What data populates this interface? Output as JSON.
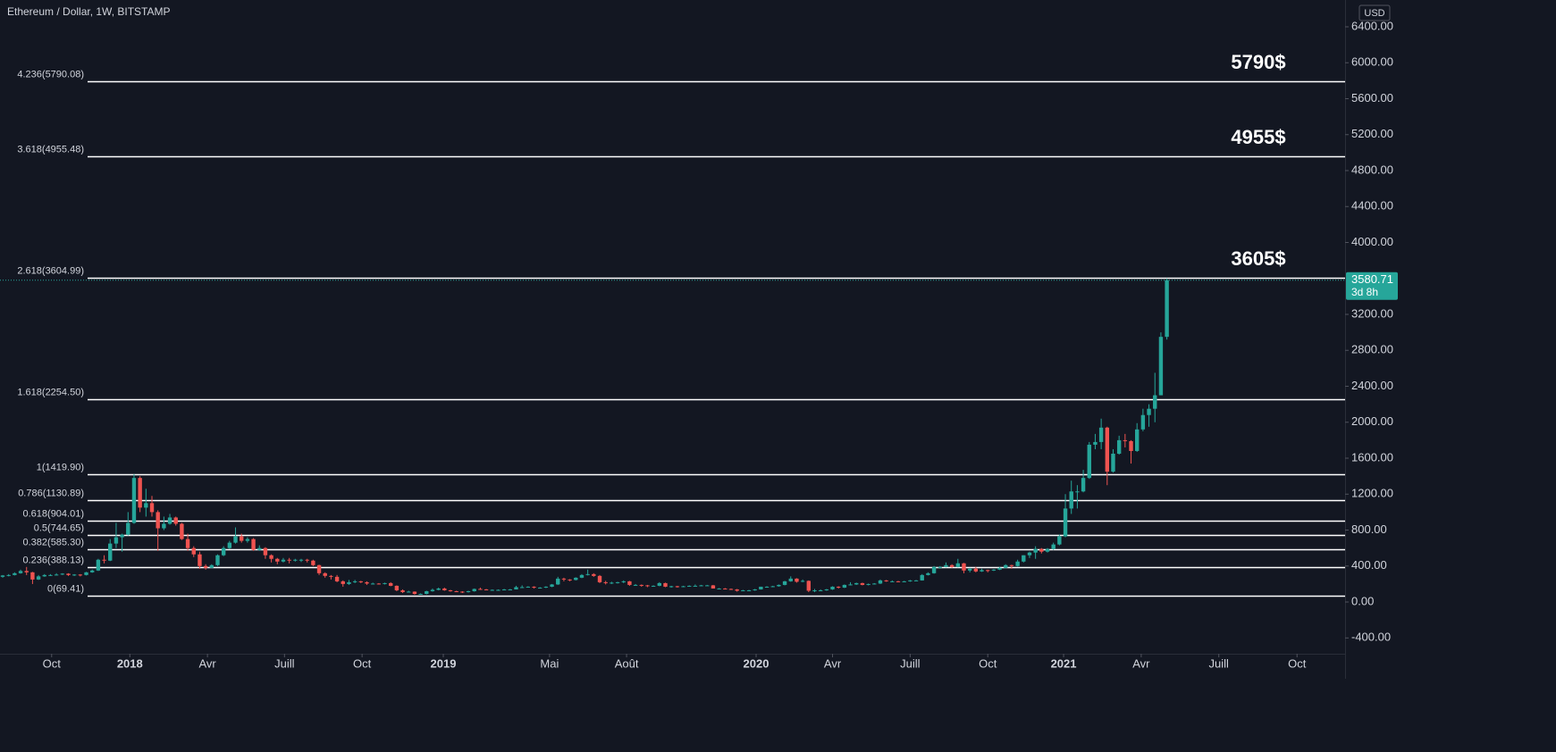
{
  "chart_data": {
    "type": "candlestick",
    "title": "Ethereum / Dollar, 1W, BITSTAMP",
    "currency": "USD",
    "colors": {
      "up": "#26a69a",
      "down": "#ef5350",
      "level": "#ffffff"
    },
    "ylim": [
      -576,
      6698
    ],
    "yticks": [
      {
        "value": -400,
        "label": "-400.00"
      },
      {
        "value": 0,
        "label": "0.00"
      },
      {
        "value": 400,
        "label": "400.00"
      },
      {
        "value": 800,
        "label": "800.00"
      },
      {
        "value": 1200,
        "label": "1200.00"
      },
      {
        "value": 1600,
        "label": "1600.00"
      },
      {
        "value": 2000,
        "label": "2000.00"
      },
      {
        "value": 2400,
        "label": "2400.00"
      },
      {
        "value": 2800,
        "label": "2800.00"
      },
      {
        "value": 3200,
        "label": "3200.00"
      },
      {
        "value": 4000,
        "label": "4000.00"
      },
      {
        "value": 4400,
        "label": "4400.00"
      },
      {
        "value": 4800,
        "label": "4800.00"
      },
      {
        "value": 5200,
        "label": "5200.00"
      },
      {
        "value": 5600,
        "label": "5600.00"
      },
      {
        "value": 6000,
        "label": "6000.00"
      },
      {
        "value": 6400,
        "label": "6400.00"
      }
    ],
    "xlim": [
      -0.45,
      224.85
    ],
    "xticks": [
      {
        "value": 8.2,
        "label": "Oct"
      },
      {
        "value": 21.3,
        "label": "2018"
      },
      {
        "value": 34.3,
        "label": "Avr"
      },
      {
        "value": 47.2,
        "label": "Juill"
      },
      {
        "value": 60.2,
        "label": "Oct"
      },
      {
        "value": 73.8,
        "label": "2019"
      },
      {
        "value": 91.6,
        "label": "Mai"
      },
      {
        "value": 104.5,
        "label": "Août"
      },
      {
        "value": 126.2,
        "label": "2020"
      },
      {
        "value": 139,
        "label": "Avr"
      },
      {
        "value": 152,
        "label": "Juill"
      },
      {
        "value": 165,
        "label": "Oct"
      },
      {
        "value": 177.7,
        "label": "2021"
      },
      {
        "value": 190.7,
        "label": "Avr"
      },
      {
        "value": 203.7,
        "label": "Juill"
      },
      {
        "value": 216.8,
        "label": "Oct"
      }
    ],
    "levels": [
      {
        "value": 69.41,
        "label": "0(69.41)"
      },
      {
        "value": 388.13,
        "label": "0.236(388.13)"
      },
      {
        "value": 585.3,
        "label": "0.382(585.30)"
      },
      {
        "value": 744.65,
        "label": "0.5(744.65)"
      },
      {
        "value": 904.01,
        "label": "0.618(904.01)"
      },
      {
        "value": 1130.89,
        "label": "0.786(1130.89)"
      },
      {
        "value": 1419.9,
        "label": "1(1419.90)"
      },
      {
        "value": 2254.5,
        "label": "1.618(2254.50)"
      },
      {
        "value": 3604.99,
        "label": "2.618(3604.99)"
      },
      {
        "value": 4955.48,
        "label": "3.618(4955.48)"
      },
      {
        "value": 5790.08,
        "label": "4.236(5790.08)"
      }
    ],
    "annotations": [
      {
        "value": 5790,
        "label": "5790$"
      },
      {
        "value": 4955,
        "label": "4955$"
      },
      {
        "value": 3605,
        "label": "3605$"
      }
    ],
    "countdown": "3d 8h",
    "ohlc": [
      [
        280,
        300,
        270,
        295
      ],
      [
        295,
        310,
        285,
        300
      ],
      [
        300,
        330,
        295,
        320
      ],
      [
        320,
        360,
        315,
        345
      ],
      [
        345,
        390,
        300,
        330
      ],
      [
        330,
        335,
        200,
        250
      ],
      [
        250,
        300,
        245,
        285
      ],
      [
        285,
        310,
        280,
        300
      ],
      [
        300,
        310,
        290,
        300
      ],
      [
        300,
        320,
        295,
        305
      ],
      [
        305,
        320,
        300,
        315
      ],
      [
        315,
        320,
        290,
        300
      ],
      [
        300,
        310,
        290,
        305
      ],
      [
        305,
        310,
        285,
        300
      ],
      [
        300,
        335,
        295,
        330
      ],
      [
        330,
        360,
        325,
        350
      ],
      [
        350,
        480,
        345,
        470
      ],
      [
        470,
        520,
        430,
        460
      ],
      [
        460,
        700,
        455,
        650
      ],
      [
        650,
        880,
        600,
        720
      ],
      [
        720,
        760,
        560,
        750
      ],
      [
        750,
        1000,
        740,
        880
      ],
      [
        880,
        1420,
        870,
        1380
      ],
      [
        1380,
        1400,
        1000,
        1050
      ],
      [
        1050,
        1260,
        950,
        1100
      ],
      [
        1100,
        1180,
        950,
        1000
      ],
      [
        1000,
        1020,
        570,
        820
      ],
      [
        820,
        950,
        800,
        870
      ],
      [
        870,
        980,
        860,
        940
      ],
      [
        940,
        950,
        850,
        870
      ],
      [
        870,
        880,
        690,
        700
      ],
      [
        700,
        760,
        570,
        600
      ],
      [
        600,
        620,
        500,
        530
      ],
      [
        530,
        560,
        370,
        400
      ],
      [
        400,
        420,
        360,
        380
      ],
      [
        380,
        420,
        375,
        410
      ],
      [
        410,
        530,
        400,
        520
      ],
      [
        520,
        620,
        510,
        600
      ],
      [
        600,
        680,
        590,
        660
      ],
      [
        660,
        830,
        650,
        730
      ],
      [
        730,
        760,
        660,
        680
      ],
      [
        680,
        720,
        660,
        700
      ],
      [
        700,
        710,
        570,
        580
      ],
      [
        580,
        630,
        570,
        600
      ],
      [
        600,
        610,
        480,
        520
      ],
      [
        520,
        530,
        440,
        480
      ],
      [
        480,
        490,
        420,
        450
      ],
      [
        450,
        490,
        440,
        470
      ],
      [
        470,
        490,
        430,
        460
      ],
      [
        460,
        480,
        450,
        470
      ],
      [
        470,
        480,
        445,
        470
      ],
      [
        470,
        480,
        440,
        460
      ],
      [
        460,
        470,
        400,
        410
      ],
      [
        410,
        415,
        300,
        320
      ],
      [
        320,
        330,
        270,
        290
      ],
      [
        290,
        300,
        250,
        280
      ],
      [
        280,
        300,
        220,
        230
      ],
      [
        230,
        240,
        170,
        200
      ],
      [
        200,
        245,
        190,
        220
      ],
      [
        220,
        245,
        210,
        230
      ],
      [
        230,
        235,
        210,
        220
      ],
      [
        220,
        230,
        190,
        205
      ],
      [
        205,
        215,
        195,
        205
      ],
      [
        205,
        210,
        195,
        200
      ],
      [
        200,
        215,
        195,
        210
      ],
      [
        210,
        220,
        175,
        180
      ],
      [
        180,
        185,
        120,
        130
      ],
      [
        130,
        140,
        100,
        110
      ],
      [
        110,
        125,
        105,
        115
      ],
      [
        115,
        118,
        82,
        90
      ],
      [
        90,
        95,
        84,
        90
      ],
      [
        90,
        125,
        85,
        120
      ],
      [
        120,
        150,
        115,
        135
      ],
      [
        135,
        160,
        130,
        150
      ],
      [
        150,
        160,
        125,
        130
      ],
      [
        130,
        135,
        115,
        120
      ],
      [
        120,
        125,
        110,
        115
      ],
      [
        115,
        120,
        100,
        110
      ],
      [
        110,
        125,
        105,
        120
      ],
      [
        120,
        150,
        115,
        145
      ],
      [
        145,
        160,
        135,
        140
      ],
      [
        140,
        145,
        130,
        135
      ],
      [
        135,
        140,
        125,
        135
      ],
      [
        135,
        140,
        130,
        135
      ],
      [
        135,
        145,
        130,
        140
      ],
      [
        140,
        145,
        135,
        140
      ],
      [
        140,
        180,
        140,
        165
      ],
      [
        165,
        185,
        160,
        165
      ],
      [
        165,
        175,
        160,
        170
      ],
      [
        170,
        175,
        150,
        160
      ],
      [
        160,
        165,
        150,
        160
      ],
      [
        160,
        175,
        155,
        170
      ],
      [
        170,
        200,
        165,
        195
      ],
      [
        195,
        280,
        190,
        260
      ],
      [
        260,
        270,
        230,
        250
      ],
      [
        250,
        255,
        230,
        245
      ],
      [
        245,
        275,
        240,
        270
      ],
      [
        270,
        310,
        265,
        300
      ],
      [
        300,
        360,
        295,
        310
      ],
      [
        310,
        320,
        280,
        290
      ],
      [
        290,
        300,
        210,
        220
      ],
      [
        220,
        235,
        195,
        210
      ],
      [
        210,
        225,
        200,
        215
      ],
      [
        215,
        225,
        205,
        220
      ],
      [
        220,
        240,
        210,
        230
      ],
      [
        230,
        235,
        180,
        190
      ],
      [
        190,
        200,
        185,
        190
      ],
      [
        190,
        195,
        170,
        185
      ],
      [
        185,
        190,
        165,
        175
      ],
      [
        175,
        185,
        170,
        180
      ],
      [
        180,
        220,
        175,
        210
      ],
      [
        210,
        215,
        165,
        170
      ],
      [
        170,
        180,
        160,
        175
      ],
      [
        175,
        180,
        160,
        170
      ],
      [
        170,
        180,
        165,
        175
      ],
      [
        175,
        185,
        170,
        180
      ],
      [
        180,
        195,
        175,
        180
      ],
      [
        180,
        190,
        175,
        185
      ],
      [
        185,
        190,
        180,
        185
      ],
      [
        185,
        190,
        150,
        150
      ],
      [
        150,
        155,
        140,
        150
      ],
      [
        150,
        155,
        140,
        145
      ],
      [
        145,
        150,
        135,
        140
      ],
      [
        140,
        145,
        115,
        125
      ],
      [
        125,
        135,
        120,
        130
      ],
      [
        130,
        135,
        125,
        130
      ],
      [
        130,
        145,
        125,
        140
      ],
      [
        140,
        170,
        138,
        170
      ],
      [
        170,
        175,
        160,
        170
      ],
      [
        170,
        180,
        165,
        175
      ],
      [
        175,
        195,
        170,
        190
      ],
      [
        190,
        235,
        185,
        230
      ],
      [
        230,
        285,
        225,
        260
      ],
      [
        260,
        265,
        215,
        225
      ],
      [
        225,
        250,
        220,
        235
      ],
      [
        235,
        240,
        110,
        125
      ],
      [
        125,
        145,
        110,
        130
      ],
      [
        130,
        140,
        125,
        130
      ],
      [
        130,
        145,
        125,
        140
      ],
      [
        140,
        175,
        135,
        170
      ],
      [
        170,
        175,
        150,
        160
      ],
      [
        160,
        195,
        155,
        190
      ],
      [
        190,
        220,
        185,
        195
      ],
      [
        195,
        215,
        190,
        210
      ],
      [
        210,
        215,
        185,
        190
      ],
      [
        190,
        205,
        185,
        200
      ],
      [
        200,
        210,
        195,
        205
      ],
      [
        205,
        250,
        200,
        240
      ],
      [
        240,
        245,
        225,
        230
      ],
      [
        230,
        240,
        225,
        230
      ],
      [
        230,
        235,
        220,
        225
      ],
      [
        225,
        235,
        220,
        230
      ],
      [
        230,
        245,
        225,
        240
      ],
      [
        240,
        245,
        235,
        240
      ],
      [
        240,
        310,
        238,
        300
      ],
      [
        300,
        330,
        295,
        320
      ],
      [
        320,
        400,
        315,
        390
      ],
      [
        390,
        400,
        370,
        390
      ],
      [
        390,
        440,
        385,
        410
      ],
      [
        410,
        420,
        380,
        390
      ],
      [
        390,
        480,
        385,
        430
      ],
      [
        430,
        435,
        320,
        350
      ],
      [
        350,
        380,
        330,
        370
      ],
      [
        370,
        390,
        330,
        340
      ],
      [
        340,
        370,
        335,
        355
      ],
      [
        355,
        360,
        330,
        350
      ],
      [
        350,
        365,
        345,
        360
      ],
      [
        360,
        390,
        355,
        380
      ],
      [
        380,
        420,
        375,
        410
      ],
      [
        410,
        415,
        370,
        400
      ],
      [
        400,
        470,
        395,
        450
      ],
      [
        450,
        520,
        440,
        520
      ],
      [
        520,
        560,
        490,
        550
      ],
      [
        550,
        620,
        480,
        590
      ],
      [
        590,
        600,
        540,
        560
      ],
      [
        560,
        600,
        550,
        590
      ],
      [
        590,
        660,
        580,
        640
      ],
      [
        640,
        750,
        630,
        730
      ],
      [
        730,
        1200,
        720,
        1040
      ],
      [
        1040,
        1350,
        980,
        1230
      ],
      [
        1230,
        1300,
        1040,
        1230
      ],
      [
        1230,
        1470,
        1220,
        1380
      ],
      [
        1380,
        1780,
        1370,
        1750
      ],
      [
        1750,
        1870,
        1700,
        1780
      ],
      [
        1780,
        2040,
        1700,
        1940
      ],
      [
        1940,
        1950,
        1300,
        1450
      ],
      [
        1450,
        1700,
        1440,
        1650
      ],
      [
        1650,
        1850,
        1640,
        1800
      ],
      [
        1800,
        1870,
        1720,
        1790
      ],
      [
        1790,
        1800,
        1540,
        1680
      ],
      [
        1680,
        1990,
        1670,
        1920
      ],
      [
        1920,
        2150,
        1900,
        2080
      ],
      [
        2080,
        2200,
        1950,
        2150
      ],
      [
        2150,
        2550,
        2000,
        2300
      ],
      [
        2300,
        3000,
        2300,
        2950
      ],
      [
        2950,
        3600,
        2920,
        3580.71
      ]
    ]
  }
}
